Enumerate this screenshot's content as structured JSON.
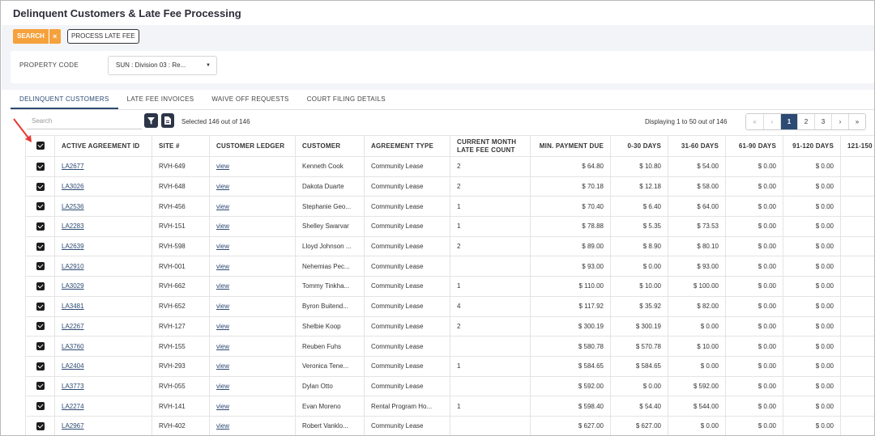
{
  "page": {
    "title": "Delinquent Customers & Late Fee Processing"
  },
  "toolbar": {
    "search_label": "SEARCH",
    "clear_label": "×",
    "process_label": "PROCESS LATE FEE"
  },
  "filter": {
    "property_label": "PROPERTY CODE",
    "property_value": "SUN : Division 03 : Re..."
  },
  "tabs": [
    {
      "label": "DELINQUENT CUSTOMERS",
      "active": true
    },
    {
      "label": "LATE FEE INVOICES",
      "active": false
    },
    {
      "label": "WAIVE OFF REQUESTS",
      "active": false
    },
    {
      "label": "COURT FILING DETAILS",
      "active": false
    }
  ],
  "grid": {
    "search_placeholder": "Search",
    "selected_text": "Selected 146 out of 146",
    "display_text": "Displaying 1 to 50 out of 146",
    "pager": [
      "«",
      "‹",
      "1",
      "2",
      "3",
      "›",
      "»"
    ],
    "pager_active": "1",
    "columns": [
      "ACTIVE AGREEMENT ID",
      "SITE #",
      "CUSTOMER LEDGER",
      "CUSTOMER",
      "AGREEMENT TYPE",
      "CURRENT MONTH LATE FEE COUNT",
      "MIN. PAYMENT DUE",
      "0-30 DAYS",
      "31-60 DAYS",
      "61-90 DAYS",
      "91-120 DAYS",
      "121-150"
    ],
    "rows": [
      {
        "id": "LA2677",
        "site": "RVH-649",
        "ledger": "view",
        "customer": "Kenneth Cook",
        "type": "Community Lease",
        "count": "2",
        "min_due": "$ 64.80",
        "d0_30": "$ 10.80",
        "d31_60": "$ 54.00",
        "d61_90": "$ 0.00",
        "d91_120": "$ 0.00"
      },
      {
        "id": "LA3026",
        "site": "RVH-648",
        "ledger": "view",
        "customer": "Dakota Duarte",
        "type": "Community Lease",
        "count": "2",
        "min_due": "$ 70.18",
        "d0_30": "$ 12.18",
        "d31_60": "$ 58.00",
        "d61_90": "$ 0.00",
        "d91_120": "$ 0.00"
      },
      {
        "id": "LA2536",
        "site": "RVH-456",
        "ledger": "view",
        "customer": "Stephanie Geo...",
        "type": "Community Lease",
        "count": "1",
        "min_due": "$ 70.40",
        "d0_30": "$ 6.40",
        "d31_60": "$ 64.00",
        "d61_90": "$ 0.00",
        "d91_120": "$ 0.00"
      },
      {
        "id": "LA2283",
        "site": "RVH-151",
        "ledger": "view",
        "customer": "Shelley Swarvar",
        "type": "Community Lease",
        "count": "1",
        "min_due": "$ 78.88",
        "d0_30": "$ 5.35",
        "d31_60": "$ 73.53",
        "d61_90": "$ 0.00",
        "d91_120": "$ 0.00"
      },
      {
        "id": "LA2639",
        "site": "RVH-598",
        "ledger": "view",
        "customer": "Lloyd Johnson ...",
        "type": "Community Lease",
        "count": "2",
        "min_due": "$ 89.00",
        "d0_30": "$ 8.90",
        "d31_60": "$ 80.10",
        "d61_90": "$ 0.00",
        "d91_120": "$ 0.00"
      },
      {
        "id": "LA2910",
        "site": "RVH-001",
        "ledger": "view",
        "customer": "Nehemias Pec...",
        "type": "Community Lease",
        "count": "",
        "min_due": "$ 93.00",
        "d0_30": "$ 0.00",
        "d31_60": "$ 93.00",
        "d61_90": "$ 0.00",
        "d91_120": "$ 0.00"
      },
      {
        "id": "LA3029",
        "site": "RVH-662",
        "ledger": "view",
        "customer": "Tommy Tinkha...",
        "type": "Community Lease",
        "count": "1",
        "min_due": "$ 110.00",
        "d0_30": "$ 10.00",
        "d31_60": "$ 100.00",
        "d61_90": "$ 0.00",
        "d91_120": "$ 0.00"
      },
      {
        "id": "LA3481",
        "site": "RVH-652",
        "ledger": "view",
        "customer": "Byron Buitend...",
        "type": "Community Lease",
        "count": "4",
        "min_due": "$ 117.92",
        "d0_30": "$ 35.92",
        "d31_60": "$ 82.00",
        "d61_90": "$ 0.00",
        "d91_120": "$ 0.00"
      },
      {
        "id": "LA2267",
        "site": "RVH-127",
        "ledger": "view",
        "customer": "Shelbie Koop",
        "type": "Community Lease",
        "count": "2",
        "min_due": "$ 300.19",
        "d0_30": "$ 300.19",
        "d31_60": "$ 0.00",
        "d61_90": "$ 0.00",
        "d91_120": "$ 0.00"
      },
      {
        "id": "LA3760",
        "site": "RVH-155",
        "ledger": "view",
        "customer": "Reuben Fuhs",
        "type": "Community Lease",
        "count": "",
        "min_due": "$ 580.78",
        "d0_30": "$ 570.78",
        "d31_60": "$ 10.00",
        "d61_90": "$ 0.00",
        "d91_120": "$ 0.00"
      },
      {
        "id": "LA2404",
        "site": "RVH-293",
        "ledger": "view",
        "customer": "Veronica Tene...",
        "type": "Community Lease",
        "count": "1",
        "min_due": "$ 584.65",
        "d0_30": "$ 584.65",
        "d31_60": "$ 0.00",
        "d61_90": "$ 0.00",
        "d91_120": "$ 0.00"
      },
      {
        "id": "LA3773",
        "site": "RVH-055",
        "ledger": "view",
        "customer": "Dylan Otto",
        "type": "Community Lease",
        "count": "",
        "min_due": "$ 592.00",
        "d0_30": "$ 0.00",
        "d31_60": "$ 592.00",
        "d61_90": "$ 0.00",
        "d91_120": "$ 0.00"
      },
      {
        "id": "LA2274",
        "site": "RVH-141",
        "ledger": "view",
        "customer": "Evan Moreno",
        "type": "Rental Program Ho...",
        "count": "1",
        "min_due": "$ 598.40",
        "d0_30": "$ 54.40",
        "d31_60": "$ 544.00",
        "d61_90": "$ 0.00",
        "d91_120": "$ 0.00"
      },
      {
        "id": "LA2967",
        "site": "RVH-402",
        "ledger": "view",
        "customer": "Robert Vanklo...",
        "type": "Community Lease",
        "count": "",
        "min_due": "$ 627.00",
        "d0_30": "$ 627.00",
        "d31_60": "$ 0.00",
        "d61_90": "$ 0.00",
        "d91_120": "$ 0.00"
      }
    ]
  },
  "colors": {
    "accent_orange": "#f5a13c",
    "primary_navy": "#2c4a73",
    "icon_dark": "#2d3548",
    "annotation_arrow": "#e53935"
  },
  "icons": {
    "filter": "filter-icon",
    "export": "export-icon",
    "annotation": "red-arrow-icon"
  }
}
